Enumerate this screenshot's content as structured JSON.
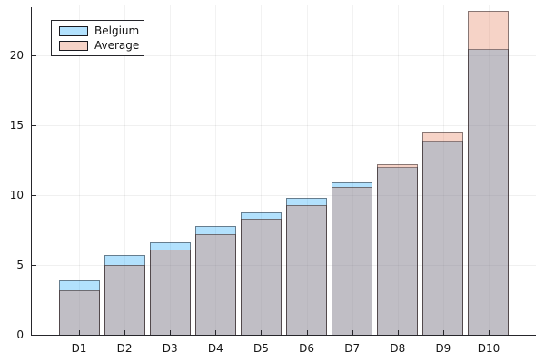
{
  "chart_data": {
    "type": "bar",
    "title": "",
    "xlabel": "",
    "ylabel": "",
    "categories": [
      "D1",
      "D2",
      "D3",
      "D4",
      "D5",
      "D6",
      "D7",
      "D8",
      "D9",
      "D10"
    ],
    "series": [
      {
        "name": "Belgium",
        "color": "#009AFA",
        "fill_alpha": 0.3,
        "values": [
          3.9,
          5.7,
          6.6,
          7.8,
          8.8,
          9.8,
          10.9,
          12.0,
          13.9,
          20.5
        ]
      },
      {
        "name": "Average",
        "color": "#E26E47",
        "fill_alpha": 0.3,
        "values": [
          3.2,
          5.0,
          6.1,
          7.2,
          8.3,
          9.3,
          10.6,
          12.2,
          14.5,
          23.2
        ]
      }
    ],
    "bar_style": "overlaid-translucent",
    "ylim": [
      0,
      23.7
    ],
    "yticks": [
      0,
      5,
      10,
      15,
      20
    ],
    "ytick_labels": [
      "0",
      "5",
      "10",
      "15",
      "20"
    ],
    "grid": true,
    "legend_position": "top-left"
  },
  "legend": {
    "items": [
      {
        "label": "Belgium"
      },
      {
        "label": "Average"
      }
    ]
  }
}
